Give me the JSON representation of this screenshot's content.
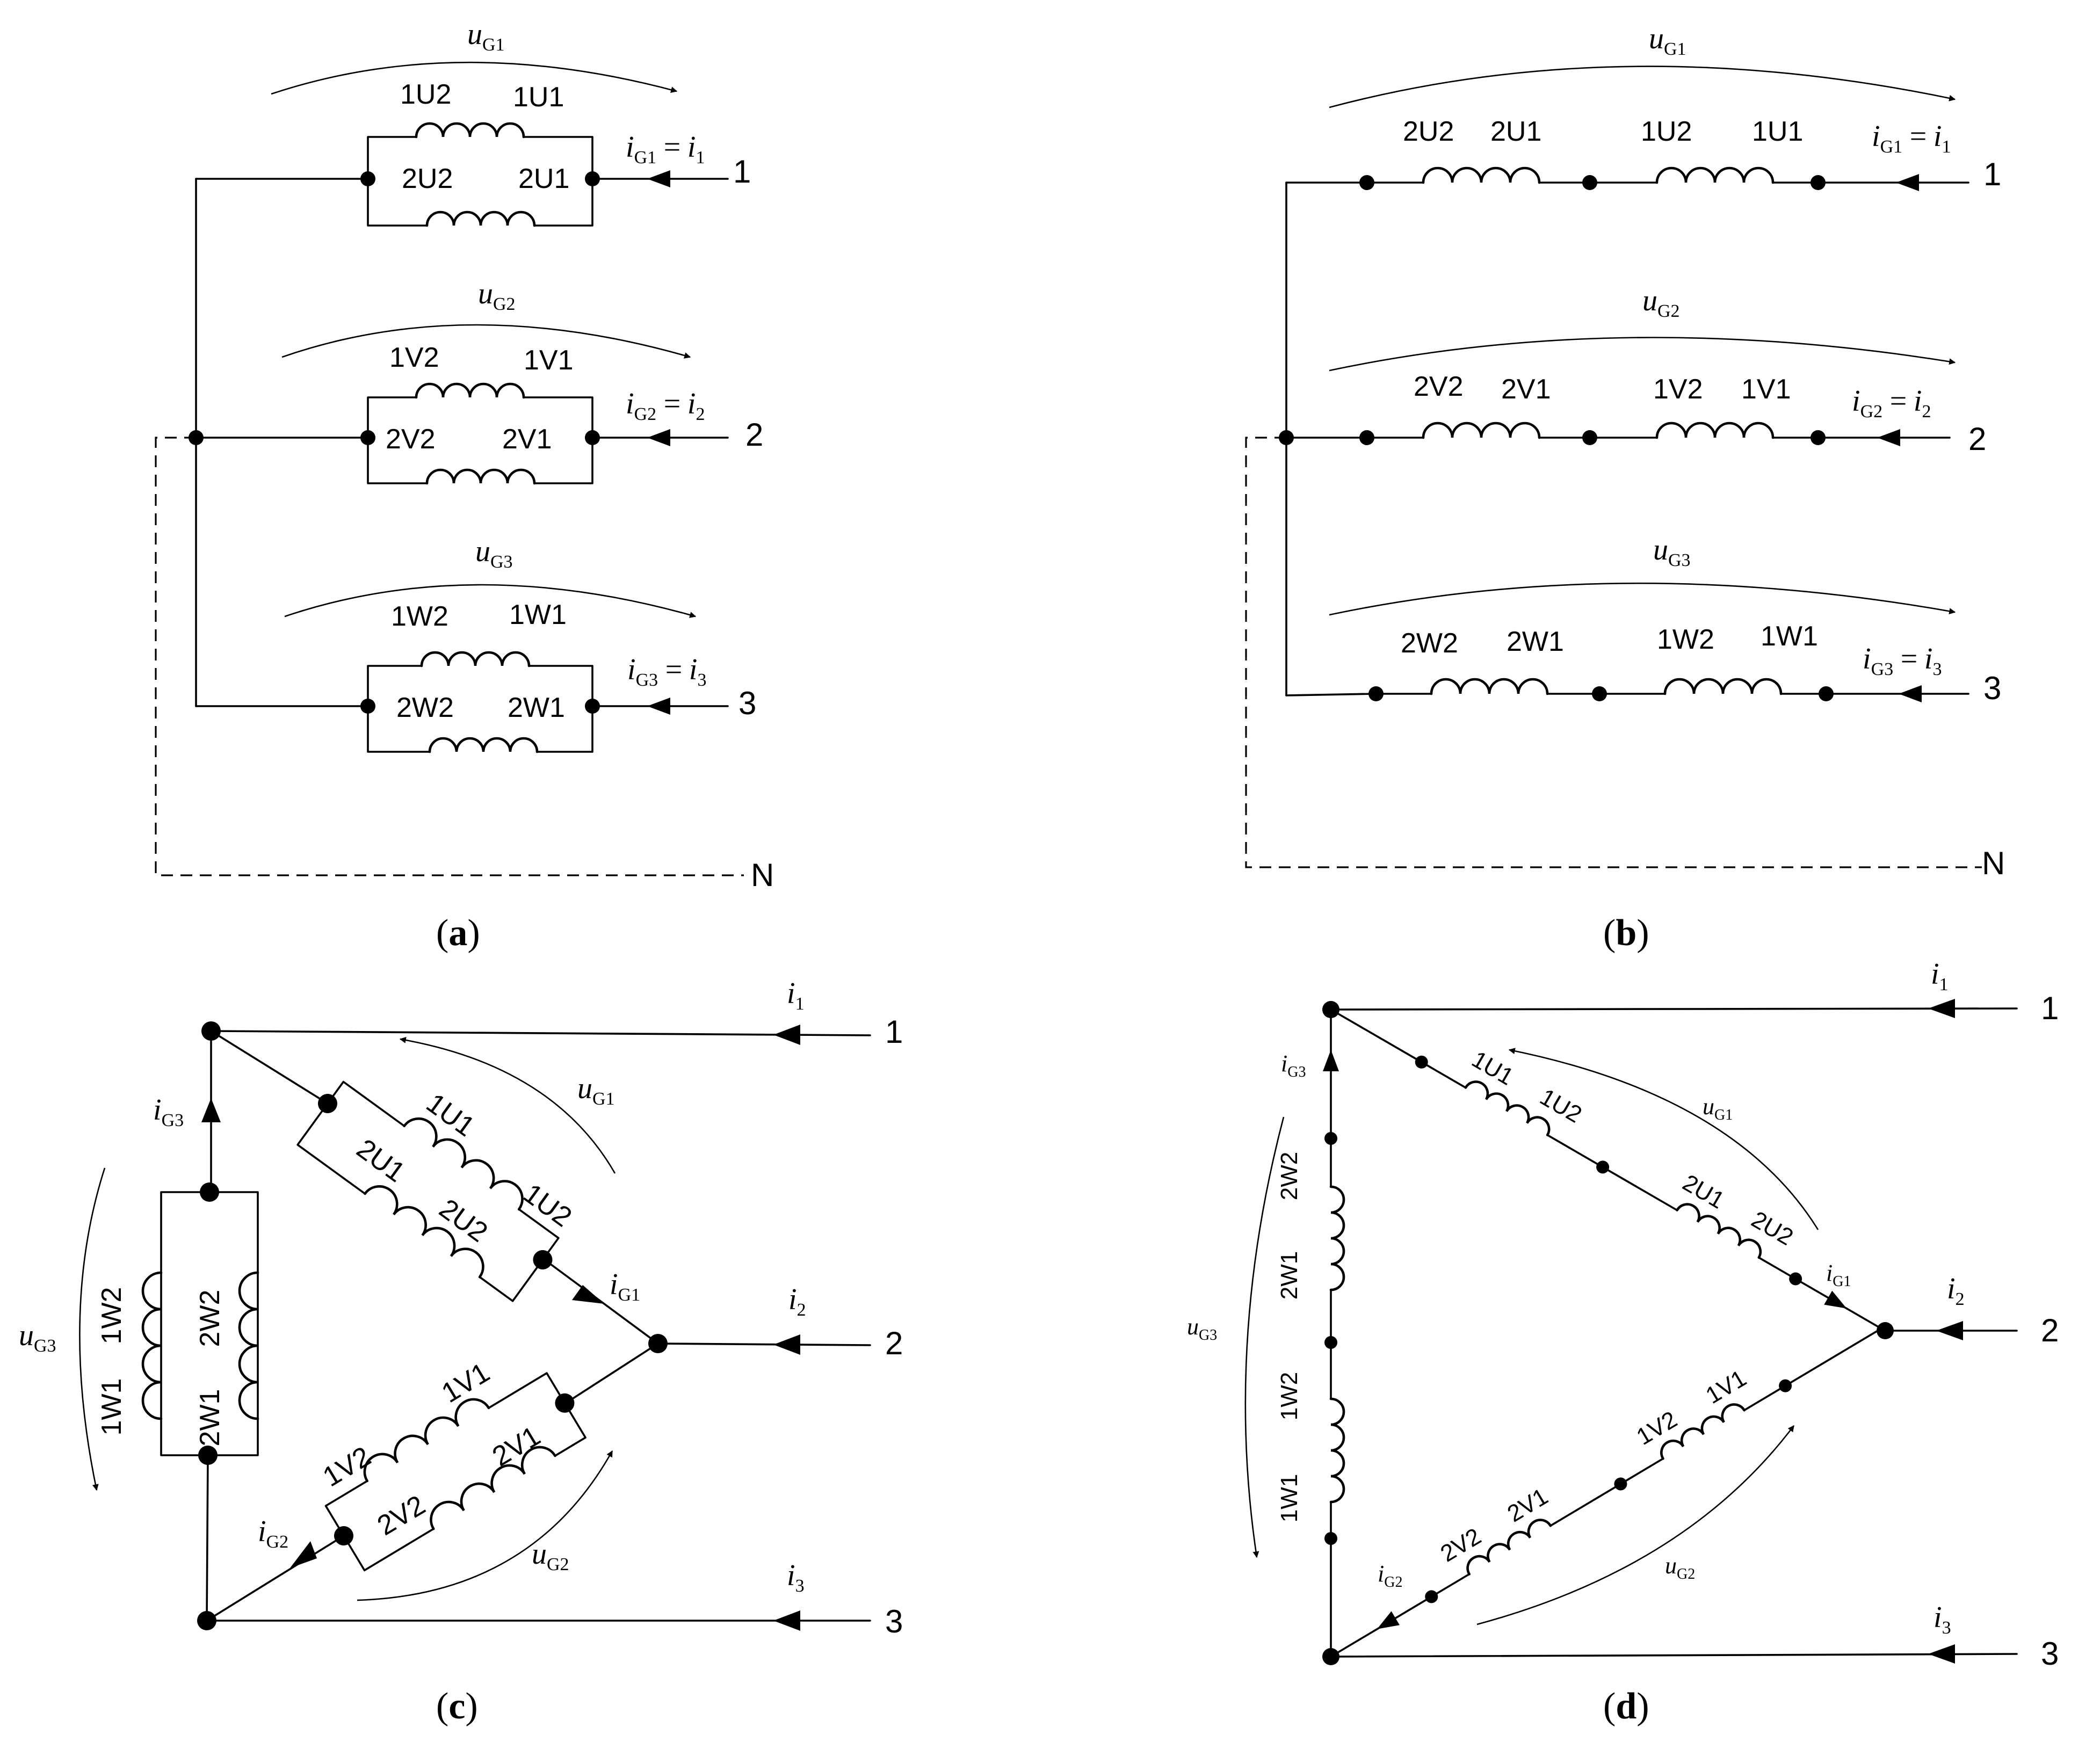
{
  "panels": {
    "a": {
      "caption_open": "(",
      "caption_letter": "a",
      "caption_close": ")",
      "rows": [
        {
          "top_left": "1U2",
          "top_right": "1U1",
          "bot_left": "2U2",
          "bot_right": "2U1",
          "voltage": "u",
          "voltage_sub": "G1",
          "current": "i",
          "current_sub": "G1",
          "eq": "=",
          "line_current": "i",
          "line_sub": "1",
          "terminal": "1"
        },
        {
          "top_left": "1V2",
          "top_right": "1V1",
          "bot_left": "2V2",
          "bot_right": "2V1",
          "voltage": "u",
          "voltage_sub": "G2",
          "current": "i",
          "current_sub": "G2",
          "eq": "=",
          "line_current": "i",
          "line_sub": "2",
          "terminal": "2"
        },
        {
          "top_left": "1W2",
          "top_right": "1W1",
          "bot_left": "2W2",
          "bot_right": "2W1",
          "voltage": "u",
          "voltage_sub": "G3",
          "current": "i",
          "current_sub": "G3",
          "eq": "=",
          "line_current": "i",
          "line_sub": "3",
          "terminal": "3"
        }
      ],
      "neutral": "N"
    },
    "b": {
      "caption_open": "(",
      "caption_letter": "b",
      "caption_close": ")",
      "rows": [
        {
          "c1_left": "2U2",
          "c1_right": "2U1",
          "c2_left": "1U2",
          "c2_right": "1U1",
          "voltage": "u",
          "voltage_sub": "G1",
          "current": "i",
          "current_sub": "G1",
          "eq": "=",
          "line_current": "i",
          "line_sub": "1",
          "terminal": "1"
        },
        {
          "c1_left": "2V2",
          "c1_right": "2V1",
          "c2_left": "1V2",
          "c2_right": "1V1",
          "voltage": "u",
          "voltage_sub": "G2",
          "current": "i",
          "current_sub": "G2",
          "eq": "=",
          "line_current": "i",
          "line_sub": "2",
          "terminal": "2"
        },
        {
          "c1_left": "2W2",
          "c1_right": "2W1",
          "c2_left": "1W2",
          "c2_right": "1W1",
          "voltage": "u",
          "voltage_sub": "G3",
          "current": "i",
          "current_sub": "G3",
          "eq": "=",
          "line_current": "i",
          "line_sub": "3",
          "terminal": "3"
        }
      ],
      "neutral": "N"
    },
    "c": {
      "caption_open": "(",
      "caption_letter": "c",
      "caption_close": ")",
      "terminals": [
        "1",
        "2",
        "3"
      ],
      "line_currents": [
        {
          "v": "i",
          "s": "1"
        },
        {
          "v": "i",
          "s": "2"
        },
        {
          "v": "i",
          "s": "3"
        }
      ],
      "u_phase": [
        {
          "v": "u",
          "s": "G1"
        },
        {
          "v": "u",
          "s": "G2"
        },
        {
          "v": "u",
          "s": "G3"
        }
      ],
      "i_phase": [
        {
          "v": "i",
          "s": "G1"
        },
        {
          "v": "i",
          "s": "G2"
        },
        {
          "v": "i",
          "s": "G3"
        }
      ],
      "u_labels": [
        "1U1",
        "1U2",
        "2U1",
        "2U2"
      ],
      "v_labels": [
        "1V1",
        "1V2",
        "2V1",
        "2V2"
      ],
      "w_labels": [
        "1W2",
        "1W1",
        "2W2",
        "2W1"
      ]
    },
    "d": {
      "caption_open": "(",
      "caption_letter": "d",
      "caption_close": ")",
      "terminals": [
        "1",
        "2",
        "3"
      ],
      "line_currents": [
        {
          "v": "i",
          "s": "1"
        },
        {
          "v": "i",
          "s": "2"
        },
        {
          "v": "i",
          "s": "3"
        }
      ],
      "u_phase": [
        {
          "v": "u",
          "s": "G1"
        },
        {
          "v": "u",
          "s": "G2"
        },
        {
          "v": "u",
          "s": "G3"
        }
      ],
      "i_phase": [
        {
          "v": "i",
          "s": "G1"
        },
        {
          "v": "i",
          "s": "G2"
        },
        {
          "v": "i",
          "s": "G3"
        }
      ],
      "u_labels": [
        "1U1",
        "1U2",
        "2U1",
        "2U2"
      ],
      "v_labels": [
        "1V1",
        "1V2",
        "2V1",
        "2V2"
      ],
      "w_labels": [
        "2W2",
        "2W1",
        "1W2",
        "1W1"
      ]
    }
  }
}
